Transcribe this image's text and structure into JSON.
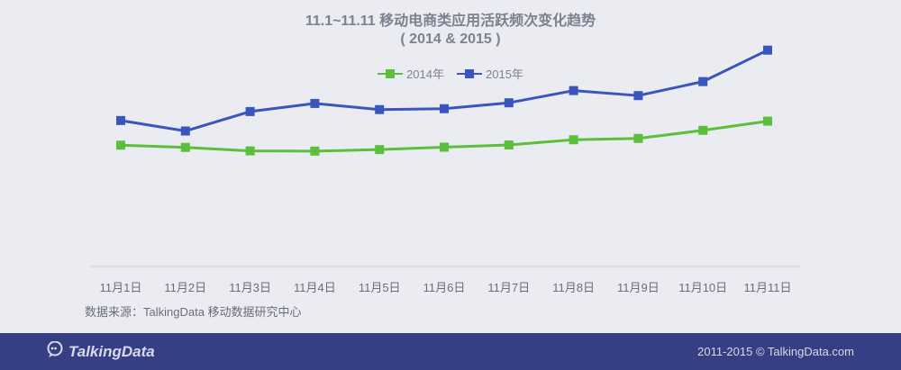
{
  "chart_data": {
    "type": "line",
    "title": "11.1~11.11 移动电商类应用活跃频次变化趋势",
    "subtitle": "( 2014 & 2015 )",
    "categories": [
      "11月1日",
      "11月2日",
      "11月3日",
      "11月4日",
      "11月5日",
      "11月6日",
      "11月7日",
      "11月8日",
      "11月9日",
      "11月10日",
      "11月11日"
    ],
    "series": [
      {
        "name": "2014年",
        "color": "#5bbf3c",
        "values": [
          55.5,
          54.5,
          52.9,
          52.8,
          53.5,
          54.6,
          55.6,
          58.0,
          58.6,
          62.3,
          66.5
        ]
      },
      {
        "name": "2015年",
        "color": "#3a55bd",
        "values": [
          66.8,
          62.0,
          70.9,
          74.6,
          71.8,
          72.2,
          74.9,
          80.5,
          78.2,
          84.6,
          99.0
        ]
      }
    ],
    "ylim": [
      0,
      110
    ],
    "legend_position": "top-center",
    "grid": false,
    "xlabel": "",
    "ylabel": ""
  },
  "source_note": "数据来源：TalkingData 移动数据研究中心",
  "footer": {
    "brand": "TalkingData",
    "copyright": "2011-2015 © TalkingData.com",
    "icon": "chat-bubble-icon"
  }
}
